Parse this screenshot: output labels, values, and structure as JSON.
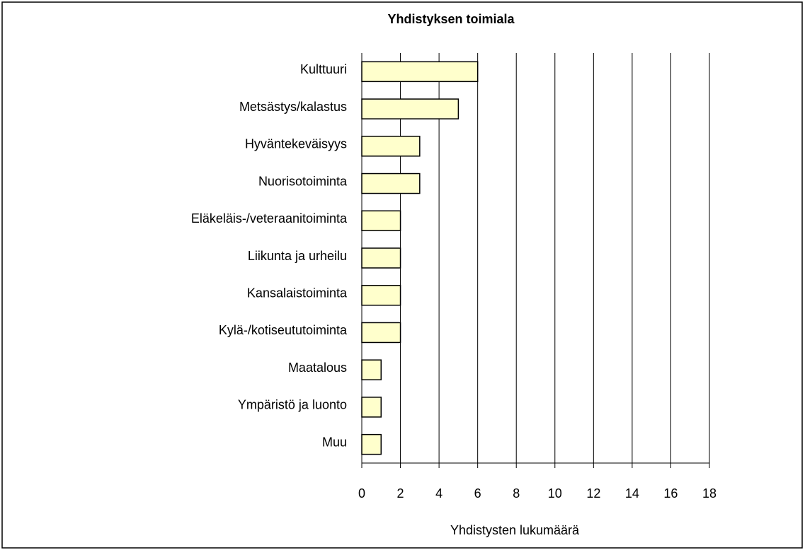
{
  "chart_data": {
    "type": "bar",
    "orientation": "horizontal",
    "title": "Yhdistyksen toimiala",
    "x_label": "Yhdistysten lukumäärä",
    "categories": [
      "Kulttuuri",
      "Metsästys/kalastus",
      "Hyväntekeväisyys",
      "Nuorisotoiminta",
      "Eläkeläis-/veteraanitoiminta",
      "Liikunta ja urheilu",
      "Kansalaistoiminta",
      "Kylä-/kotiseututoiminta",
      "Maatalous",
      "Ympäristö ja luonto",
      "Muu"
    ],
    "values": [
      6,
      5,
      3,
      3,
      2,
      2,
      2,
      2,
      1,
      1,
      1
    ],
    "color": "#ffffcc",
    "xlim": [
      0,
      18
    ],
    "xticks": [
      0,
      2,
      4,
      6,
      8,
      10,
      12,
      14,
      16,
      18
    ],
    "grid": true
  }
}
